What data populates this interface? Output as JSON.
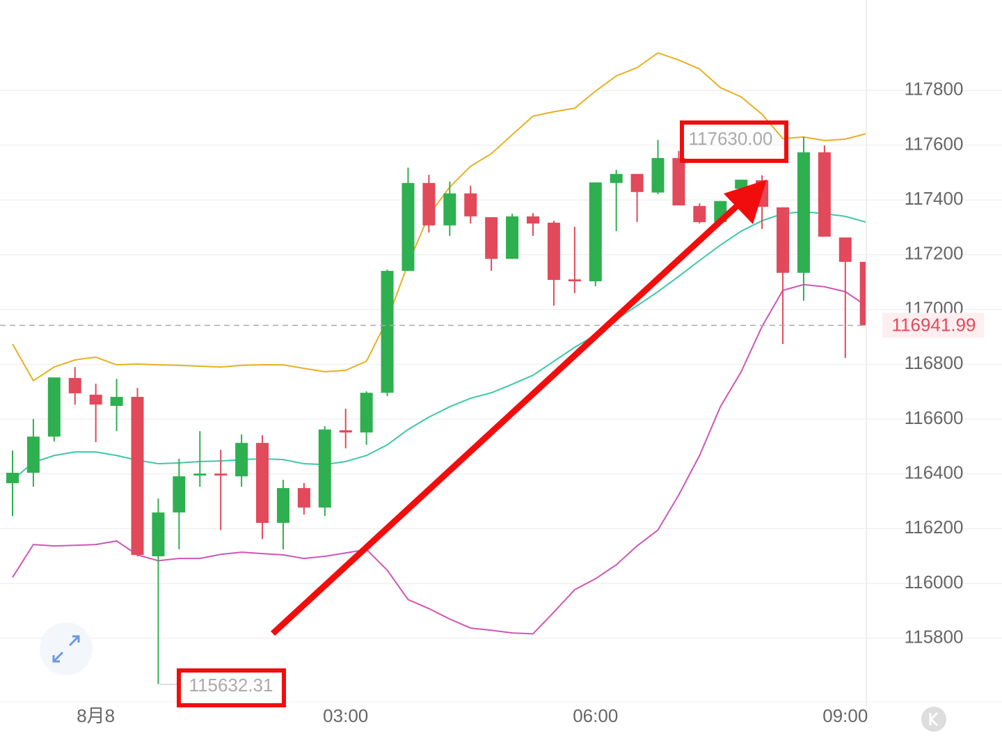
{
  "chart_data": {
    "type": "candlestick",
    "categories": [
      null,
      null,
      null,
      null,
      "8月8",
      null,
      null,
      null,
      null,
      null,
      null,
      null,
      null,
      null,
      null,
      null,
      "03:00",
      null,
      null,
      null,
      null,
      null,
      null,
      null,
      null,
      null,
      null,
      null,
      "06:00",
      null,
      null,
      null,
      null,
      null,
      null,
      null,
      null,
      null,
      null,
      null,
      "09:00",
      null
    ],
    "open": [
      116366,
      116404,
      116536,
      116750,
      116689,
      116648,
      116681,
      116099,
      116259,
      116394,
      116401,
      116391,
      116513,
      116221,
      116348,
      116277,
      116559,
      116551,
      116696,
      117141,
      117462,
      117307,
      117424,
      117337,
      117185,
      117340,
      117317,
      117110,
      117103,
      117462,
      117495,
      117427,
      117553,
      117378,
      117319,
      117441,
      117472,
      117373,
      117134,
      117574,
      117263,
      117174
    ],
    "high": [
      116485,
      116600,
      116752,
      116790,
      116729,
      116747,
      116714,
      116310,
      116455,
      116556,
      116488,
      116544,
      116541,
      116378,
      116366,
      116574,
      116638,
      116701,
      117146,
      117518,
      117492,
      117467,
      117452,
      117337,
      117350,
      117352,
      117324,
      117302,
      117464,
      117510,
      117495,
      117619,
      117579,
      117388,
      117396,
      117474,
      117490,
      117373,
      117630,
      117599,
      117263,
      117174
    ],
    "low": [
      116246,
      116353,
      116518,
      116653,
      116516,
      116556,
      116099,
      115632.31,
      116124,
      116353,
      116195,
      116353,
      116162,
      116124,
      116251,
      116246,
      116493,
      116506,
      116684,
      117141,
      117281,
      117269,
      117314,
      117141,
      117185,
      117269,
      117014,
      117060,
      117085,
      117286,
      117319,
      117421,
      117380,
      117314,
      117314,
      117441,
      117294,
      116874,
      117032,
      117266,
      116823,
      116941.99
    ],
    "close": [
      116404,
      116536,
      116752,
      116694,
      116653,
      116681,
      116104,
      116259,
      116391,
      116401,
      116394,
      116513,
      116221,
      116348,
      116277,
      116562,
      116551,
      116696,
      117141,
      117462,
      117307,
      117424,
      117340,
      117185,
      117340,
      117314,
      117108,
      117103,
      117464,
      117495,
      117429,
      117553,
      117380,
      117319,
      117396,
      117474,
      117375,
      117134,
      117574,
      117266,
      117174,
      116941.99
    ],
    "up_color": "#2eb050",
    "down_color": "#e2495a",
    "lines": [
      {
        "color": "#e8b020",
        "values": [
          116874,
          116740,
          116790,
          116816,
          116826,
          116798,
          116801,
          116798,
          116796,
          116793,
          116790,
          116796,
          116798,
          116798,
          116785,
          116773,
          116778,
          116811,
          116963,
          117167,
          117345,
          117447,
          117523,
          117569,
          117638,
          117706,
          117722,
          117735,
          117797,
          117853,
          117883,
          117937,
          117911,
          117878,
          117810,
          117776,
          117713,
          117624,
          117630,
          117617,
          117622,
          117642
        ]
      },
      {
        "color": "#3cc8a8",
        "values": [
          116378,
          116442,
          116467,
          116480,
          116480,
          116467,
          116450,
          116437,
          116440,
          116445,
          116447,
          116452,
          116455,
          116452,
          116437,
          116434,
          116445,
          116467,
          116506,
          116562,
          116607,
          116645,
          116676,
          116696,
          116727,
          116760,
          116811,
          116862,
          116907,
          116963,
          117014,
          117065,
          117121,
          117179,
          117235,
          117286,
          117324,
          117350,
          117357,
          117350,
          117340,
          117319
        ]
      },
      {
        "color": "#d055b5",
        "values": [
          116022,
          116142,
          116137,
          116139,
          116142,
          116155,
          116104,
          116083,
          116091,
          116091,
          116106,
          116114,
          116109,
          116104,
          116091,
          116099,
          116111,
          116124,
          116048,
          115941,
          115908,
          115870,
          115837,
          115829,
          115819,
          115816,
          115895,
          115977,
          116017,
          116068,
          116137,
          116195,
          116323,
          116467,
          116645,
          116773,
          116938,
          117070,
          117091,
          117083,
          117065,
          117014
        ]
      }
    ],
    "ylim": [
      115550,
      118130
    ],
    "yticks": [
      115800,
      116000,
      116200,
      116400,
      116600,
      116800,
      117000,
      117200,
      117400,
      117600,
      117800
    ],
    "grid": true,
    "last_price": 116941.99,
    "max_label": "117630.00",
    "min_label": "115632.31"
  }
}
